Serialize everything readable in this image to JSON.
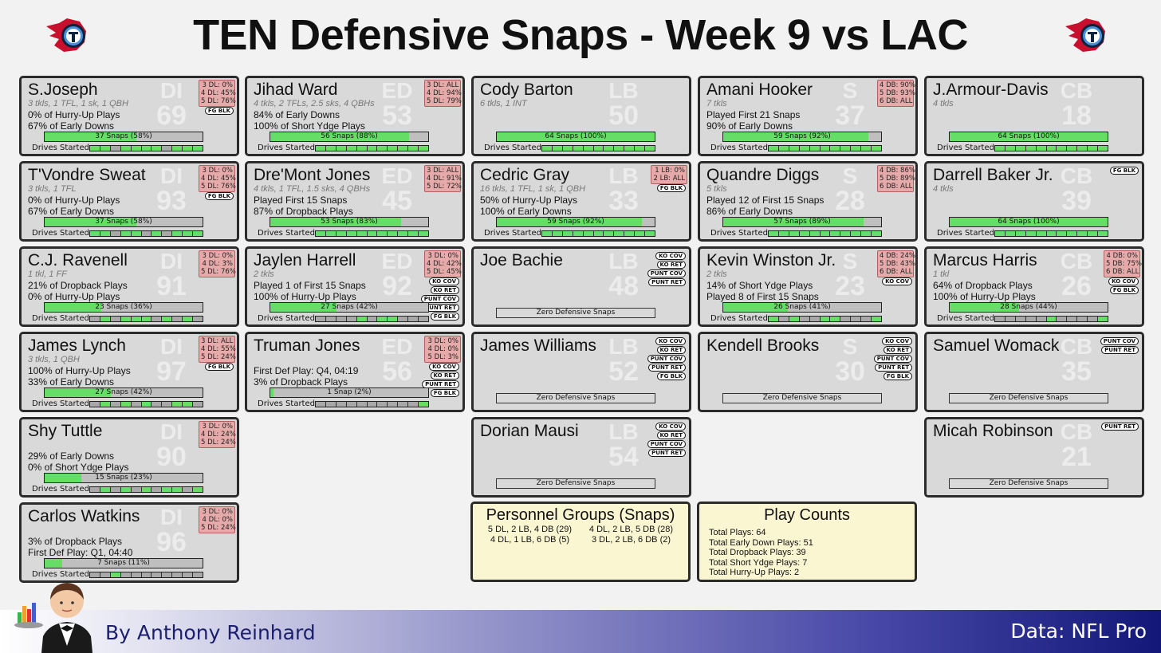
{
  "title": "TEN Defensive Snaps - Week 9 vs LAC",
  "logos": {
    "left": "titans-logo",
    "right": "titans-logo"
  },
  "colors": {
    "snap_bar": "#66dd66",
    "badge": "#e6aaaa",
    "card": "#d9d9d9",
    "info": "#fbf6d2",
    "footer_dark": "#131878"
  },
  "drives_label": "Drives Started:",
  "players": [
    {
      "name": "S.Joseph",
      "pos": "DI",
      "number": "69",
      "stat": "3 tkls, 1 TFL, 1 sk, 1 QBH",
      "lines": [
        "0% of Hurry-Up Plays",
        "67% of Early Downs"
      ],
      "alignments": [
        "3 DL: 0%",
        "4 DL: 45%",
        "5 DL: 76%"
      ],
      "tags": [
        "FG BLK"
      ],
      "snaps": "37 Snaps (58%)",
      "snap_pct": 0.58,
      "drives": [
        1,
        1,
        0,
        1,
        1,
        1,
        1,
        0,
        1,
        1,
        1
      ]
    },
    {
      "name": "T'Vondre Sweat",
      "pos": "DI",
      "number": "93",
      "stat": "3 tkls, 1 TFL",
      "lines": [
        "0% of Hurry-Up Plays",
        "67% of Early Downs"
      ],
      "alignments": [
        "3 DL: 0%",
        "4 DL: 45%",
        "5 DL: 76%"
      ],
      "tags": [
        "FG BLK"
      ],
      "snaps": "37 Snaps (58%)",
      "snap_pct": 0.58,
      "drives": [
        1,
        1,
        0,
        1,
        1,
        0,
        1,
        0,
        1,
        1,
        1
      ]
    },
    {
      "name": "C.J. Ravenell",
      "pos": "DI",
      "number": "91",
      "stat": "1 tkl, 1 FF",
      "lines": [
        "21% of Dropback Plays",
        "0% of Hurry-Up Plays"
      ],
      "alignments": [
        "3 DL: 0%",
        "4 DL: 3%",
        "5 DL: 76%"
      ],
      "tags": [],
      "snaps": "23 Snaps (36%)",
      "snap_pct": 0.36,
      "drives": [
        0,
        1,
        0,
        1,
        1,
        1,
        0,
        1,
        0,
        1,
        0
      ]
    },
    {
      "name": "James Lynch",
      "pos": "DI",
      "number": "97",
      "stat": "3 tkls, 1 QBH",
      "lines": [
        "100% of Hurry-Up Plays",
        "33% of Early Downs"
      ],
      "alignments": [
        "3 DL: ALL",
        "4 DL: 55%",
        "5 DL: 24%"
      ],
      "tags": [
        "FG BLK"
      ],
      "snaps": "27 Snaps (42%)",
      "snap_pct": 0.42,
      "drives": [
        0,
        1,
        0,
        1,
        0,
        1,
        0,
        0,
        1,
        1,
        0
      ]
    },
    {
      "name": "Shy Tuttle",
      "pos": "DI",
      "number": "90",
      "stat": "",
      "lines": [
        "29% of Early Downs",
        "0% of Short Ydge Plays"
      ],
      "alignments": [
        "3 DL: 0%",
        "4 DL: 24%",
        "5 DL: 24%"
      ],
      "tags": [],
      "snaps": "15 Snaps (23%)",
      "snap_pct": 0.23,
      "drives": [
        0,
        1,
        0,
        1,
        0,
        1,
        0,
        1,
        1,
        0,
        1
      ]
    },
    {
      "name": "Carlos Watkins",
      "pos": "DI",
      "number": "96",
      "stat": "",
      "lines": [
        "3% of Dropback Plays",
        "First Def Play: Q1, 04:40"
      ],
      "alignments": [
        "3 DL: 0%",
        "4 DL: 0%",
        "5 DL: 24%"
      ],
      "tags": [],
      "snaps": "7 Snaps (11%)",
      "snap_pct": 0.11,
      "drives": [
        0,
        0,
        1,
        0,
        0,
        0,
        0,
        0,
        0,
        0,
        0
      ]
    },
    {
      "name": "Jihad Ward",
      "pos": "ED",
      "number": "53",
      "stat": "4 tkls, 2 TFLs, 2.5 sks, 4 QBHs",
      "lines": [
        "84% of Early Downs",
        "100% of Short Ydge Plays"
      ],
      "alignments": [
        "3 DL: ALL",
        "4 DL: 94%",
        "5 DL: 79%"
      ],
      "tags": [],
      "snaps": "56 Snaps (88%)",
      "snap_pct": 0.88,
      "drives": [
        1,
        1,
        1,
        1,
        1,
        1,
        1,
        1,
        1,
        1,
        1
      ]
    },
    {
      "name": "Dre'Mont Jones",
      "pos": "ED",
      "number": "45",
      "stat": "4 tkls, 1 TFL, 1.5 sks, 4 QBHs",
      "lines": [
        "Played First 15 Snaps",
        "87% of Dropback Plays"
      ],
      "alignments": [
        "3 DL: ALL",
        "4 DL: 91%",
        "5 DL: 72%"
      ],
      "tags": [],
      "snaps": "53 Snaps (83%)",
      "snap_pct": 0.83,
      "drives": [
        1,
        1,
        1,
        1,
        1,
        1,
        1,
        1,
        1,
        1,
        1
      ]
    },
    {
      "name": "Jaylen Harrell",
      "pos": "ED",
      "number": "92",
      "stat": "2 tkls",
      "lines": [
        "Played 1 of First 15 Snaps",
        "100% of Hurry-Up Plays"
      ],
      "alignments": [
        "3 DL: 0%",
        "4 DL: 42%",
        "5 DL: 45%"
      ],
      "tags": [
        "KO COV",
        "KO RET",
        "PUNT COV",
        "PUNT RET",
        "FG BLK"
      ],
      "snaps": "27 Snaps (42%)",
      "snap_pct": 0.42,
      "drives": [
        0,
        0,
        0,
        0,
        1,
        0,
        1,
        1,
        0,
        0,
        0
      ]
    },
    {
      "name": "Truman Jones",
      "pos": "ED",
      "number": "56",
      "stat": "",
      "lines": [
        "First Def Play: Q4, 04:19",
        "3% of Dropback Plays"
      ],
      "alignments": [
        "3 DL: 0%",
        "4 DL: 0%",
        "5 DL: 3%"
      ],
      "tags": [
        "KO COV",
        "KO RET",
        "PUNT RET",
        "FG BLK"
      ],
      "snaps": "1 Snap (2%)",
      "snap_pct": 0.02,
      "drives": [
        0,
        0,
        0,
        0,
        0,
        0,
        0,
        0,
        0,
        0,
        1
      ]
    },
    {
      "name": "Cody Barton",
      "pos": "LB",
      "number": "50",
      "stat": "6 tkls, 1 INT",
      "lines": [],
      "alignments": [],
      "tags": [],
      "snaps": "64 Snaps (100%)",
      "snap_pct": 1.0,
      "drives": [
        1,
        1,
        1,
        1,
        1,
        1,
        1,
        1,
        1,
        1,
        1
      ]
    },
    {
      "name": "Cedric Gray",
      "pos": "LB",
      "number": "33",
      "stat": "16 tkls, 1 TFL, 1 sk, 1 QBH",
      "lines": [
        "50% of Hurry-Up Plays",
        "100% of Early Downs"
      ],
      "alignments": [
        "1 LB: 0%",
        "2 LB: ALL"
      ],
      "tags": [
        "FG BLK"
      ],
      "snaps": "59 Snaps (92%)",
      "snap_pct": 0.92,
      "drives": [
        1,
        1,
        1,
        1,
        1,
        1,
        1,
        1,
        1,
        1,
        1
      ]
    },
    {
      "name": "Joe Bachie",
      "pos": "LB",
      "number": "48",
      "stat": "",
      "lines": [],
      "alignments": [],
      "tags": [
        "KO COV",
        "KO RET",
        "PUNT COV",
        "PUNT RET"
      ],
      "zero": "Zero Defensive Snaps"
    },
    {
      "name": "James Williams",
      "pos": "LB",
      "number": "52",
      "stat": "",
      "lines": [],
      "alignments": [],
      "tags": [
        "KO COV",
        "KO RET",
        "PUNT COV",
        "PUNT RET",
        "FG BLK"
      ],
      "zero": "Zero Defensive Snaps"
    },
    {
      "name": "Dorian Mausi",
      "pos": "LB",
      "number": "54",
      "stat": "",
      "lines": [],
      "alignments": [],
      "tags": [
        "KO COV",
        "KO RET",
        "PUNT COV",
        "PUNT RET"
      ],
      "zero": "Zero Defensive Snaps"
    },
    {
      "name": "Amani Hooker",
      "pos": "S",
      "number": "37",
      "stat": "7 tkls",
      "lines": [
        "Played First 21 Snaps",
        "90% of Early Downs"
      ],
      "alignments": [
        "4 DB: 90%",
        "5 DB: 93%",
        "6 DB: ALL"
      ],
      "tags": [],
      "snaps": "59 Snaps (92%)",
      "snap_pct": 0.92,
      "drives": [
        1,
        1,
        1,
        1,
        1,
        1,
        1,
        1,
        1,
        1,
        1
      ]
    },
    {
      "name": "Quandre Diggs",
      "pos": "S",
      "number": "28",
      "stat": "5 tkls",
      "lines": [
        "Played 12 of First 15 Snaps",
        "86% of Early Downs"
      ],
      "alignments": [
        "4 DB: 86%",
        "5 DB: 89%",
        "6 DB: ALL"
      ],
      "tags": [],
      "snaps": "57 Snaps (89%)",
      "snap_pct": 0.89,
      "drives": [
        1,
        1,
        1,
        1,
        1,
        1,
        1,
        1,
        1,
        1,
        1
      ]
    },
    {
      "name": "Kevin Winston Jr.",
      "pos": "S",
      "number": "23",
      "stat": "2 tkls",
      "lines": [
        "14% of Short Ydge Plays",
        "Played 8 of First 15 Snaps"
      ],
      "alignments": [
        "4 DB: 24%",
        "5 DB: 43%",
        "6 DB: ALL"
      ],
      "tags": [
        "KO COV"
      ],
      "snaps": "26 Snaps (41%)",
      "snap_pct": 0.41,
      "drives": [
        1,
        0,
        1,
        0,
        0,
        1,
        1,
        0,
        0,
        0,
        1
      ]
    },
    {
      "name": "Kendell Brooks",
      "pos": "S",
      "number": "30",
      "stat": "",
      "lines": [],
      "alignments": [],
      "tags": [
        "KO COV",
        "KO RET",
        "PUNT COV",
        "PUNT RET",
        "FG BLK"
      ],
      "zero": "Zero Defensive Snaps"
    },
    {
      "name": "J.Armour-Davis",
      "pos": "CB",
      "number": "18",
      "stat": "4 tkls",
      "lines": [],
      "alignments": [],
      "tags": [],
      "snaps": "64 Snaps (100%)",
      "snap_pct": 1.0,
      "drives": [
        1,
        1,
        1,
        1,
        1,
        1,
        1,
        1,
        1,
        1,
        1
      ]
    },
    {
      "name": "Darrell Baker Jr.",
      "pos": "CB",
      "number": "39",
      "stat": "4 tkls",
      "lines": [],
      "alignments": [],
      "tags": [
        "FG BLK"
      ],
      "snaps": "64 Snaps (100%)",
      "snap_pct": 1.0,
      "drives": [
        1,
        1,
        1,
        1,
        1,
        1,
        1,
        1,
        1,
        1,
        1
      ]
    },
    {
      "name": "Marcus Harris",
      "pos": "CB",
      "number": "26",
      "stat": "1 tkl",
      "lines": [
        "64% of Dropback Plays",
        "100% of Hurry-Up Plays"
      ],
      "alignments": [
        "4 DB: 0%",
        "5 DB: 75%",
        "6 DB: ALL"
      ],
      "tags": [
        "KO COV",
        "FG BLK"
      ],
      "snaps": "28 Snaps (44%)",
      "snap_pct": 0.44,
      "drives": [
        0,
        0,
        0,
        0,
        0,
        1,
        0,
        0,
        0,
        0,
        1
      ]
    },
    {
      "name": "Samuel Womack",
      "pos": "CB",
      "number": "35",
      "stat": "",
      "lines": [],
      "alignments": [],
      "tags": [
        "PUNT COV",
        "PUNT RET"
      ],
      "zero": "Zero Defensive Snaps"
    },
    {
      "name": "Micah Robinson",
      "pos": "CB",
      "number": "21",
      "stat": "",
      "lines": [],
      "alignments": [],
      "tags": [
        "PUNT RET"
      ],
      "zero": "Zero Defensive Snaps"
    }
  ],
  "personnel": {
    "title": "Personnel Groups (Snaps)",
    "items": [
      "5 DL, 2 LB, 4 DB (29)",
      "4 DL, 2 LB, 5 DB (28)",
      "4 DL, 1 LB, 6 DB (5)",
      "3 DL, 2 LB, 6 DB (2)"
    ]
  },
  "play_counts": {
    "title": "Play Counts",
    "items": [
      "Total Plays: 64",
      "Total Early Down Plays: 51",
      "Total Dropback Plays: 39",
      "Total Short Ydge Plays: 7",
      "Total Hurry-Up Plays: 2"
    ]
  },
  "footer": {
    "author": "By Anthony Reinhard",
    "source": "Data: NFL Pro"
  }
}
